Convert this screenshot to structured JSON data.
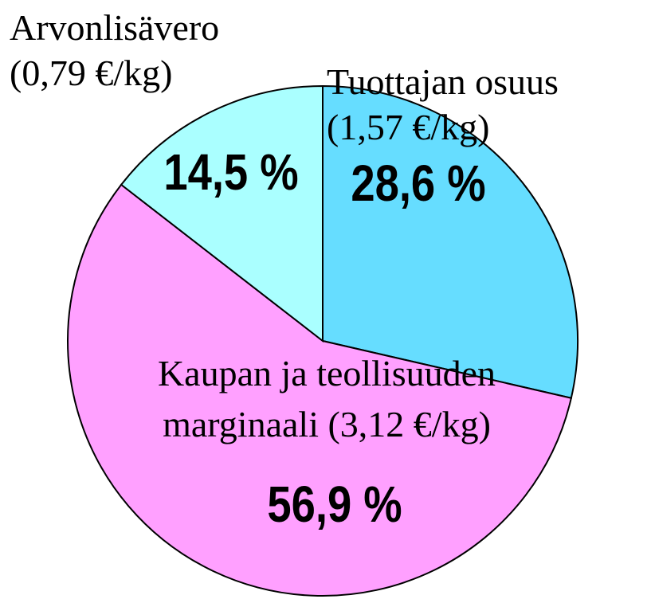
{
  "chart_data": {
    "type": "pie",
    "categories": [
      [
        "Tuottajan osuus",
        "(1,57 €/kg)"
      ],
      [
        "Kaupan ja teollisuuden",
        "marginaali  (3,12 €/kg)"
      ],
      [
        "Arvonlisävero",
        "(0,79 €/kg)"
      ]
    ],
    "values": [
      28.6,
      56.9,
      14.5
    ],
    "value_labels": [
      "28,6 %",
      "56,9 %",
      "14,5 %"
    ],
    "colors": [
      "#66ddff",
      "#ffa0ff",
      "#aaffff"
    ]
  }
}
